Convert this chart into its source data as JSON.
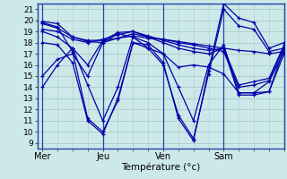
{
  "title": "",
  "xlabel": "Température (°c)",
  "ylabel": "",
  "background_color": "#cce8e8",
  "grid_color": "#aacccc",
  "line_color": "#0000aa",
  "x_ticks": [
    0,
    24,
    48,
    72
  ],
  "x_tick_labels": [
    "Mer",
    "Jeu",
    "Ven",
    "Sam"
  ],
  "ylim": [
    8.5,
    21.5
  ],
  "xlim": [
    -2,
    96
  ],
  "yticks": [
    9,
    10,
    11,
    12,
    13,
    14,
    15,
    16,
    17,
    18,
    19,
    20,
    21
  ],
  "lines": [
    [
      0,
      19.9,
      6,
      19.7,
      12,
      18.5,
      18,
      18.2,
      24,
      18.2,
      30,
      18.4,
      36,
      18.6,
      42,
      18.4,
      48,
      18.3,
      54,
      18.1,
      60,
      17.9,
      66,
      17.7,
      72,
      17.5,
      78,
      17.3,
      84,
      17.2,
      90,
      17.0,
      96,
      17.2
    ],
    [
      0,
      19.8,
      6,
      19.4,
      12,
      17.2,
      18,
      11.2,
      24,
      10.0,
      30,
      12.8,
      36,
      18.0,
      42,
      17.8,
      48,
      16.2,
      54,
      11.2,
      60,
      9.2,
      66,
      15.5,
      72,
      21.5,
      78,
      20.2,
      84,
      19.8,
      90,
      17.5,
      96,
      18.0
    ],
    [
      0,
      18.0,
      6,
      17.8,
      12,
      16.2,
      18,
      11.0,
      24,
      9.8,
      30,
      13.0,
      36,
      18.0,
      42,
      17.5,
      48,
      16.0,
      54,
      11.5,
      60,
      9.4,
      66,
      15.2,
      72,
      21.0,
      78,
      19.5,
      84,
      19.2,
      90,
      17.2,
      96,
      17.5
    ],
    [
      0,
      19.0,
      6,
      18.5,
      12,
      17.5,
      18,
      14.2,
      24,
      11.0,
      30,
      14.0,
      36,
      18.5,
      42,
      18.0,
      48,
      17.0,
      54,
      14.0,
      60,
      11.0,
      66,
      16.0,
      72,
      17.8,
      78,
      13.5,
      84,
      13.5,
      90,
      14.5,
      96,
      17.2
    ],
    [
      0,
      15.0,
      6,
      16.5,
      12,
      17.0,
      18,
      15.0,
      24,
      18.0,
      30,
      18.8,
      36,
      18.5,
      42,
      17.5,
      48,
      17.0,
      54,
      15.8,
      60,
      16.0,
      66,
      15.8,
      72,
      15.2,
      78,
      13.5,
      84,
      13.5,
      90,
      13.6,
      96,
      17.5
    ],
    [
      0,
      14.0,
      6,
      16.0,
      12,
      17.5,
      18,
      16.0,
      24,
      18.2,
      30,
      18.9,
      36,
      19.0,
      42,
      18.5,
      48,
      18.0,
      54,
      17.5,
      60,
      17.2,
      66,
      17.0,
      72,
      17.5,
      78,
      13.3,
      84,
      13.3,
      90,
      13.6,
      96,
      17.0
    ],
    [
      0,
      19.2,
      6,
      19.0,
      12,
      18.3,
      18,
      18.0,
      24,
      18.3,
      30,
      18.7,
      36,
      19.0,
      42,
      18.6,
      48,
      18.2,
      54,
      17.8,
      60,
      17.5,
      66,
      17.3,
      72,
      17.5,
      78,
      14.2,
      84,
      14.5,
      90,
      14.8,
      96,
      17.8
    ],
    [
      0,
      19.7,
      6,
      19.3,
      12,
      18.5,
      18,
      18.1,
      24,
      18.0,
      30,
      18.4,
      36,
      18.8,
      42,
      18.5,
      48,
      18.3,
      54,
      18.0,
      60,
      17.8,
      66,
      17.5,
      72,
      17.2,
      78,
      14.0,
      84,
      14.2,
      90,
      14.6,
      96,
      17.6
    ]
  ]
}
